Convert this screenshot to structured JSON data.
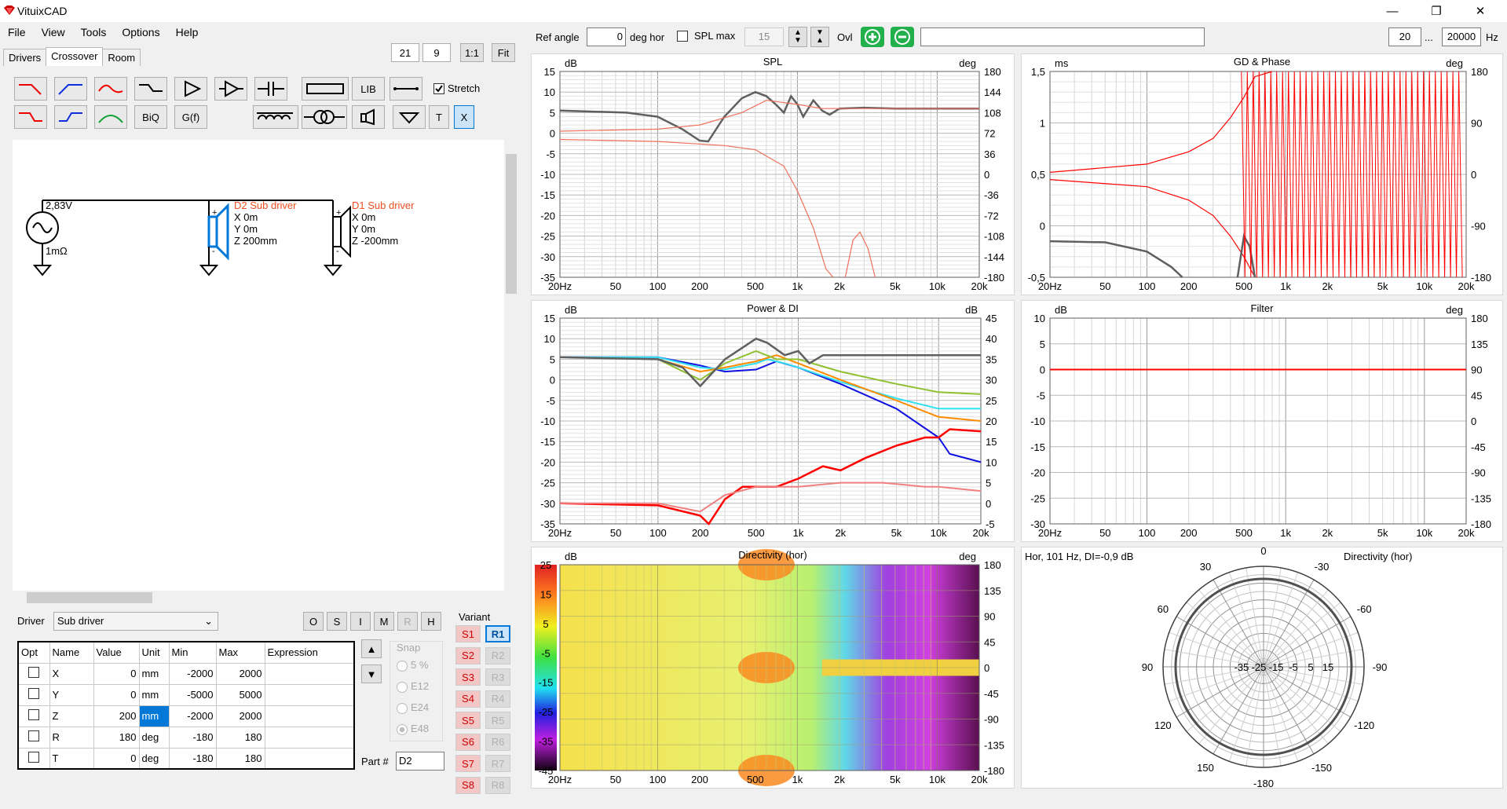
{
  "app": {
    "title": "VituixCAD",
    "icon": "ruby-logo-icon"
  },
  "menu": [
    "File",
    "View",
    "Tools",
    "Options",
    "Help"
  ],
  "tabs": [
    "Drivers",
    "Crossover",
    "Room"
  ],
  "zoom": {
    "a": "21",
    "b": "9",
    "one_to_one": "1:1",
    "fit": "Fit"
  },
  "toolbar": {
    "lib": "LIB",
    "stretch": "Stretch",
    "biq": "BiQ",
    "gf": "G(f)",
    "t": "T",
    "x": "X"
  },
  "schematic": {
    "source_voltage": "2,83V",
    "source_r": "1mΩ",
    "d2": {
      "name": "D2 Sub driver",
      "x": "X 0m",
      "y": "Y 0m",
      "z": "Z 200mm"
    },
    "d1": {
      "name": "D1 Sub driver",
      "x": "X 0m",
      "y": "Y 0m",
      "z": "Z -200mm"
    }
  },
  "driver": {
    "label": "Driver",
    "selected": "Sub driver",
    "buttons": [
      "O",
      "S",
      "I",
      "M",
      "R",
      "H"
    ]
  },
  "params": {
    "headers": [
      "Opt",
      "Name",
      "Value",
      "Unit",
      "Min",
      "Max",
      "Expression"
    ],
    "rows": [
      {
        "name": "X",
        "value": "0",
        "unit": "mm",
        "min": "-2000",
        "max": "2000",
        "expr": ""
      },
      {
        "name": "Y",
        "value": "0",
        "unit": "mm",
        "min": "-5000",
        "max": "5000",
        "expr": ""
      },
      {
        "name": "Z",
        "value": "200",
        "unit": "mm",
        "min": "-2000",
        "max": "2000",
        "expr": ""
      },
      {
        "name": "R",
        "value": "180",
        "unit": "deg",
        "min": "-180",
        "max": "180",
        "expr": ""
      },
      {
        "name": "T",
        "value": "0",
        "unit": "deg",
        "min": "-180",
        "max": "180",
        "expr": ""
      }
    ]
  },
  "snap": {
    "label": "Snap",
    "options": [
      "5 %",
      "E12",
      "E24",
      "E48"
    ]
  },
  "part": {
    "label": "Part #",
    "value": "D2"
  },
  "variant": {
    "label": "Variant",
    "s": [
      "S1",
      "S2",
      "S3",
      "S4",
      "S5",
      "S6",
      "S7",
      "S8"
    ],
    "r": [
      "R1",
      "R2",
      "R3",
      "R4",
      "R5",
      "R6",
      "R7",
      "R8"
    ]
  },
  "top": {
    "ref_angle_label": "Ref angle",
    "ref_angle": "0",
    "deg_hor": "deg hor",
    "spl_max_label": "SPL max",
    "spl_max": "15",
    "ovl": "Ovl",
    "f_lo": "20",
    "dots": "...",
    "f_hi": "20000",
    "hz": "Hz"
  },
  "freq_ticks": [
    "20Hz",
    "50",
    "100",
    "200",
    "500",
    "1k",
    "2k",
    "5k",
    "10k",
    "20k"
  ],
  "plots": {
    "spl": {
      "title": "SPL",
      "lunit": "dB",
      "runit": "deg",
      "left": [
        "15",
        "10",
        "5",
        "0",
        "-5",
        "-10",
        "-15",
        "-20",
        "-25",
        "-30",
        "-35"
      ],
      "right": [
        "180",
        "144",
        "108",
        "72",
        "36",
        "0",
        "-36",
        "-72",
        "-108",
        "-144",
        "-180"
      ]
    },
    "gd": {
      "title": "GD & Phase",
      "lunit": "ms",
      "runit": "deg",
      "left": [
        "1,5",
        "1",
        "0,5",
        "0",
        "-0,5"
      ],
      "right": [
        "180",
        "90",
        "0",
        "-90",
        "-180"
      ]
    },
    "power": {
      "title": "Power & DI",
      "lunit": "dB",
      "runit": "dB",
      "left": [
        "15",
        "10",
        "5",
        "0",
        "-5",
        "-10",
        "-15",
        "-20",
        "-25",
        "-30",
        "-35"
      ],
      "right": [
        "45",
        "40",
        "35",
        "30",
        "25",
        "20",
        "15",
        "10",
        "5",
        "0",
        "-5"
      ]
    },
    "filter": {
      "title": "Filter",
      "lunit": "dB",
      "runit": "deg",
      "left": [
        "10",
        "5",
        "0",
        "-5",
        "-10",
        "-15",
        "-20",
        "-25",
        "-30"
      ],
      "right": [
        "180",
        "135",
        "90",
        "45",
        "0",
        "-45",
        "-90",
        "-135",
        "-180"
      ]
    },
    "dir": {
      "title": "Directivity (hor)",
      "lunit": "dB",
      "runit": "deg",
      "left": [
        "25",
        "15",
        "5",
        "-5",
        "-15",
        "-25",
        "-35",
        "-45"
      ],
      "right": [
        "180",
        "135",
        "90",
        "45",
        "0",
        "-45",
        "-90",
        "-135",
        "-180"
      ]
    },
    "polar": {
      "info": "Hor, 101 Hz, DI=-0,9 dB",
      "title": "Directivity (hor)",
      "angles": [
        "0",
        "30",
        "-30",
        "60",
        "-60",
        "90",
        "-90",
        "120",
        "-120",
        "150",
        "-150",
        "-180"
      ],
      "rings": [
        "-35",
        "-25",
        "-15",
        "-5",
        "5",
        "15"
      ]
    }
  },
  "colors": {
    "red": "#ff0000",
    "lightred": "#f0705a",
    "gray": "#606060",
    "green": "#90c030",
    "cyan": "#30e0f0",
    "orange": "#ff8c00",
    "blue": "#1010e0",
    "pink": "#f08080"
  }
}
